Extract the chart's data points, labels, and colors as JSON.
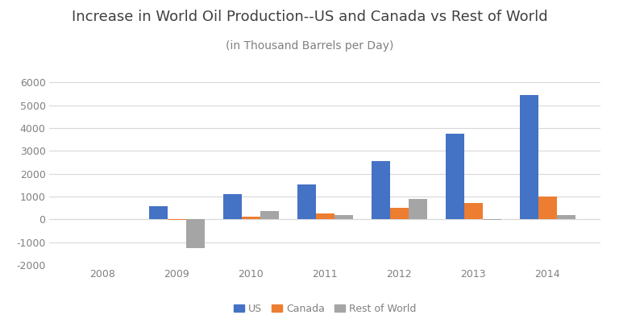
{
  "title": "Increase in World Oil Production--US and Canada vs Rest of World",
  "subtitle": "(in Thousand Barrels per Day)",
  "years": [
    2008,
    2009,
    2010,
    2011,
    2012,
    2013,
    2014
  ],
  "us": [
    0,
    575,
    1100,
    1520,
    2550,
    3750,
    5450
  ],
  "canada": [
    0,
    -30,
    110,
    260,
    490,
    700,
    1010
  ],
  "row": [
    0,
    -1280,
    370,
    200,
    880,
    -30,
    200
  ],
  "colors": {
    "us": "#4472C4",
    "canada": "#ED7D31",
    "row": "#A5A5A5"
  },
  "ylim": [
    -2000,
    6500
  ],
  "yticks": [
    -2000,
    -1000,
    0,
    1000,
    2000,
    3000,
    4000,
    5000,
    6000
  ],
  "legend_labels": [
    "US",
    "Canada",
    "Rest of World"
  ],
  "title_fontsize": 13,
  "subtitle_fontsize": 10,
  "background_color": "#FFFFFF",
  "grid_color": "#D9D9D9",
  "tick_color": "#808080",
  "title_color": "#404040",
  "bar_width": 0.25
}
